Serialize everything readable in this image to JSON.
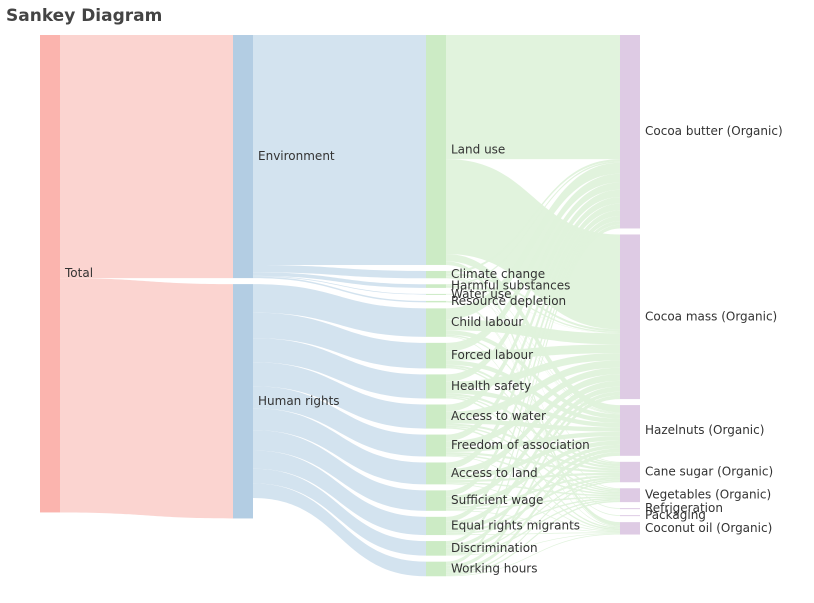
{
  "title": "Sankey Diagram",
  "colors": {
    "column_node": [
      "#fbb4ae",
      "#b3cde3",
      "#ccebc5",
      "#decbe4"
    ],
    "column_link": [
      "#fbd2cd",
      "#d1e1ee",
      "#dff2db",
      "#e9dbef"
    ]
  },
  "chart_data": {
    "type": "sankey",
    "title": "Sankey Diagram",
    "columns": [
      [
        "Total"
      ],
      [
        "Environment",
        "Human rights"
      ],
      [
        "Land use",
        "Climate change",
        "Harmful substances",
        "Water use",
        "Resource depletion",
        "Child labour",
        "Forced labour",
        "Health safety",
        "Access to water",
        "Freedom of association",
        "Access to land",
        "Sufficient wage",
        "Equal rights migrants",
        "Discrimination",
        "Working hours"
      ],
      [
        "Cocoa butter (Organic)",
        "Cocoa mass (Organic)",
        "Hazelnuts (Organic)",
        "Cane sugar (Organic)",
        "Vegetables (Organic)",
        "Refrigeration",
        "Packaging",
        "Coconut oil (Organic)"
      ]
    ],
    "links": [
      {
        "source": "Total",
        "target": "Environment",
        "value": 33.3
      },
      {
        "source": "Total",
        "target": "Human rights",
        "value": 32.1
      },
      {
        "source": "Environment",
        "target": "Land use",
        "value": 31.5
      },
      {
        "source": "Environment",
        "target": "Climate change",
        "value": 1.0
      },
      {
        "source": "Environment",
        "target": "Harmful substances",
        "value": 0.5
      },
      {
        "source": "Environment",
        "target": "Water use",
        "value": 0.1
      },
      {
        "source": "Environment",
        "target": "Resource depletion",
        "value": 0.2
      },
      {
        "source": "Human rights",
        "target": "Child labour",
        "value": 3.9
      },
      {
        "source": "Human rights",
        "target": "Forced labour",
        "value": 3.5
      },
      {
        "source": "Human rights",
        "target": "Health safety",
        "value": 3.3
      },
      {
        "source": "Human rights",
        "target": "Access to water",
        "value": 3.3
      },
      {
        "source": "Human rights",
        "target": "Freedom of association",
        "value": 3.0
      },
      {
        "source": "Human rights",
        "target": "Access to land",
        "value": 3.0
      },
      {
        "source": "Human rights",
        "target": "Sufficient wage",
        "value": 2.8
      },
      {
        "source": "Human rights",
        "target": "Equal rights migrants",
        "value": 2.5
      },
      {
        "source": "Human rights",
        "target": "Discrimination",
        "value": 2.0
      },
      {
        "source": "Human rights",
        "target": "Working hours",
        "value": 2.0
      },
      {
        "source": "Land use",
        "target": "Cocoa butter (Organic)",
        "value": 17.0
      },
      {
        "source": "Land use",
        "target": "Cocoa mass (Organic)",
        "value": 13.0
      },
      {
        "source": "Land use",
        "target": "Hazelnuts (Organic)",
        "value": 1.0
      },
      {
        "source": "Land use",
        "target": "Coconut oil (Organic)",
        "value": 0.5
      },
      {
        "source": "Climate change",
        "target": "Cocoa butter (Organic)",
        "value": 0.3
      },
      {
        "source": "Climate change",
        "target": "Cocoa mass (Organic)",
        "value": 0.3
      },
      {
        "source": "Climate change",
        "target": "Hazelnuts (Organic)",
        "value": 0.1
      },
      {
        "source": "Climate change",
        "target": "Cane sugar (Organic)",
        "value": 0.1
      },
      {
        "source": "Climate change",
        "target": "Vegetables (Organic)",
        "value": 0.1
      },
      {
        "source": "Climate change",
        "target": "Coconut oil (Organic)",
        "value": 0.1
      },
      {
        "source": "Harmful substances",
        "target": "Cocoa butter (Organic)",
        "value": 0.2
      },
      {
        "source": "Harmful substances",
        "target": "Cocoa mass (Organic)",
        "value": 0.2
      },
      {
        "source": "Harmful substances",
        "target": "Hazelnuts (Organic)",
        "value": 0.1
      },
      {
        "source": "Water use",
        "target": "Cocoa mass (Organic)",
        "value": 0.05
      },
      {
        "source": "Water use",
        "target": "Hazelnuts (Organic)",
        "value": 0.05
      },
      {
        "source": "Resource depletion",
        "target": "Refrigeration",
        "value": 0.1
      },
      {
        "source": "Resource depletion",
        "target": "Packaging",
        "value": 0.1
      },
      {
        "source": "Child labour",
        "target": "Cocoa butter (Organic)",
        "value": 1.5
      },
      {
        "source": "Child labour",
        "target": "Cocoa mass (Organic)",
        "value": 1.5
      },
      {
        "source": "Child labour",
        "target": "Hazelnuts (Organic)",
        "value": 0.6
      },
      {
        "source": "Child labour",
        "target": "Cane sugar (Organic)",
        "value": 0.2
      },
      {
        "source": "Child labour",
        "target": "Coconut oil (Organic)",
        "value": 0.1
      },
      {
        "source": "Forced labour",
        "target": "Cocoa butter (Organic)",
        "value": 1.2
      },
      {
        "source": "Forced labour",
        "target": "Cocoa mass (Organic)",
        "value": 1.2
      },
      {
        "source": "Forced labour",
        "target": "Hazelnuts (Organic)",
        "value": 0.6
      },
      {
        "source": "Forced labour",
        "target": "Cane sugar (Organic)",
        "value": 0.3
      },
      {
        "source": "Forced labour",
        "target": "Vegetables (Organic)",
        "value": 0.2
      },
      {
        "source": "Health safety",
        "target": "Cocoa butter (Organic)",
        "value": 1.0
      },
      {
        "source": "Health safety",
        "target": "Cocoa mass (Organic)",
        "value": 1.0
      },
      {
        "source": "Health safety",
        "target": "Hazelnuts (Organic)",
        "value": 0.6
      },
      {
        "source": "Health safety",
        "target": "Cane sugar (Organic)",
        "value": 0.3
      },
      {
        "source": "Health safety",
        "target": "Vegetables (Organic)",
        "value": 0.2
      },
      {
        "source": "Health safety",
        "target": "Coconut oil (Organic)",
        "value": 0.2
      },
      {
        "source": "Access to water",
        "target": "Cocoa butter (Organic)",
        "value": 1.0
      },
      {
        "source": "Access to water",
        "target": "Cocoa mass (Organic)",
        "value": 1.0
      },
      {
        "source": "Access to water",
        "target": "Hazelnuts (Organic)",
        "value": 0.6
      },
      {
        "source": "Access to water",
        "target": "Cane sugar (Organic)",
        "value": 0.3
      },
      {
        "source": "Access to water",
        "target": "Vegetables (Organic)",
        "value": 0.2
      },
      {
        "source": "Access to water",
        "target": "Coconut oil (Organic)",
        "value": 0.2
      },
      {
        "source": "Freedom of association",
        "target": "Cocoa butter (Organic)",
        "value": 0.9
      },
      {
        "source": "Freedom of association",
        "target": "Cocoa mass (Organic)",
        "value": 0.9
      },
      {
        "source": "Freedom of association",
        "target": "Hazelnuts (Organic)",
        "value": 0.6
      },
      {
        "source": "Freedom of association",
        "target": "Cane sugar (Organic)",
        "value": 0.3
      },
      {
        "source": "Freedom of association",
        "target": "Vegetables (Organic)",
        "value": 0.2
      },
      {
        "source": "Freedom of association",
        "target": "Coconut oil (Organic)",
        "value": 0.1
      },
      {
        "source": "Access to land",
        "target": "Cocoa butter (Organic)",
        "value": 0.9
      },
      {
        "source": "Access to land",
        "target": "Cocoa mass (Organic)",
        "value": 0.9
      },
      {
        "source": "Access to land",
        "target": "Hazelnuts (Organic)",
        "value": 0.6
      },
      {
        "source": "Access to land",
        "target": "Cane sugar (Organic)",
        "value": 0.3
      },
      {
        "source": "Access to land",
        "target": "Vegetables (Organic)",
        "value": 0.2
      },
      {
        "source": "Access to land",
        "target": "Coconut oil (Organic)",
        "value": 0.1
      },
      {
        "source": "Sufficient wage",
        "target": "Cocoa butter (Organic)",
        "value": 0.8
      },
      {
        "source": "Sufficient wage",
        "target": "Cocoa mass (Organic)",
        "value": 0.8
      },
      {
        "source": "Sufficient wage",
        "target": "Hazelnuts (Organic)",
        "value": 0.6
      },
      {
        "source": "Sufficient wage",
        "target": "Cane sugar (Organic)",
        "value": 0.3
      },
      {
        "source": "Sufficient wage",
        "target": "Vegetables (Organic)",
        "value": 0.2
      },
      {
        "source": "Sufficient wage",
        "target": "Coconut oil (Organic)",
        "value": 0.1
      },
      {
        "source": "Equal rights migrants",
        "target": "Cocoa butter (Organic)",
        "value": 0.7
      },
      {
        "source": "Equal rights migrants",
        "target": "Cocoa mass (Organic)",
        "value": 0.7
      },
      {
        "source": "Equal rights migrants",
        "target": "Hazelnuts (Organic)",
        "value": 0.5
      },
      {
        "source": "Equal rights migrants",
        "target": "Cane sugar (Organic)",
        "value": 0.3
      },
      {
        "source": "Equal rights migrants",
        "target": "Vegetables (Organic)",
        "value": 0.2
      },
      {
        "source": "Equal rights migrants",
        "target": "Coconut oil (Organic)",
        "value": 0.1
      },
      {
        "source": "Discrimination",
        "target": "Cocoa butter (Organic)",
        "value": 0.5
      },
      {
        "source": "Discrimination",
        "target": "Cocoa mass (Organic)",
        "value": 0.5
      },
      {
        "source": "Discrimination",
        "target": "Hazelnuts (Organic)",
        "value": 0.5
      },
      {
        "source": "Discrimination",
        "target": "Cane sugar (Organic)",
        "value": 0.2
      },
      {
        "source": "Discrimination",
        "target": "Vegetables (Organic)",
        "value": 0.2
      },
      {
        "source": "Discrimination",
        "target": "Coconut oil (Organic)",
        "value": 0.1
      },
      {
        "source": "Working hours",
        "target": "Cocoa butter (Organic)",
        "value": 0.5
      },
      {
        "source": "Working hours",
        "target": "Cocoa mass (Organic)",
        "value": 0.5
      },
      {
        "source": "Working hours",
        "target": "Hazelnuts (Organic)",
        "value": 0.5
      },
      {
        "source": "Working hours",
        "target": "Cane sugar (Organic)",
        "value": 0.2
      },
      {
        "source": "Working hours",
        "target": "Vegetables (Organic)",
        "value": 0.2
      },
      {
        "source": "Working hours",
        "target": "Coconut oil (Organic)",
        "value": 0.1
      }
    ]
  }
}
